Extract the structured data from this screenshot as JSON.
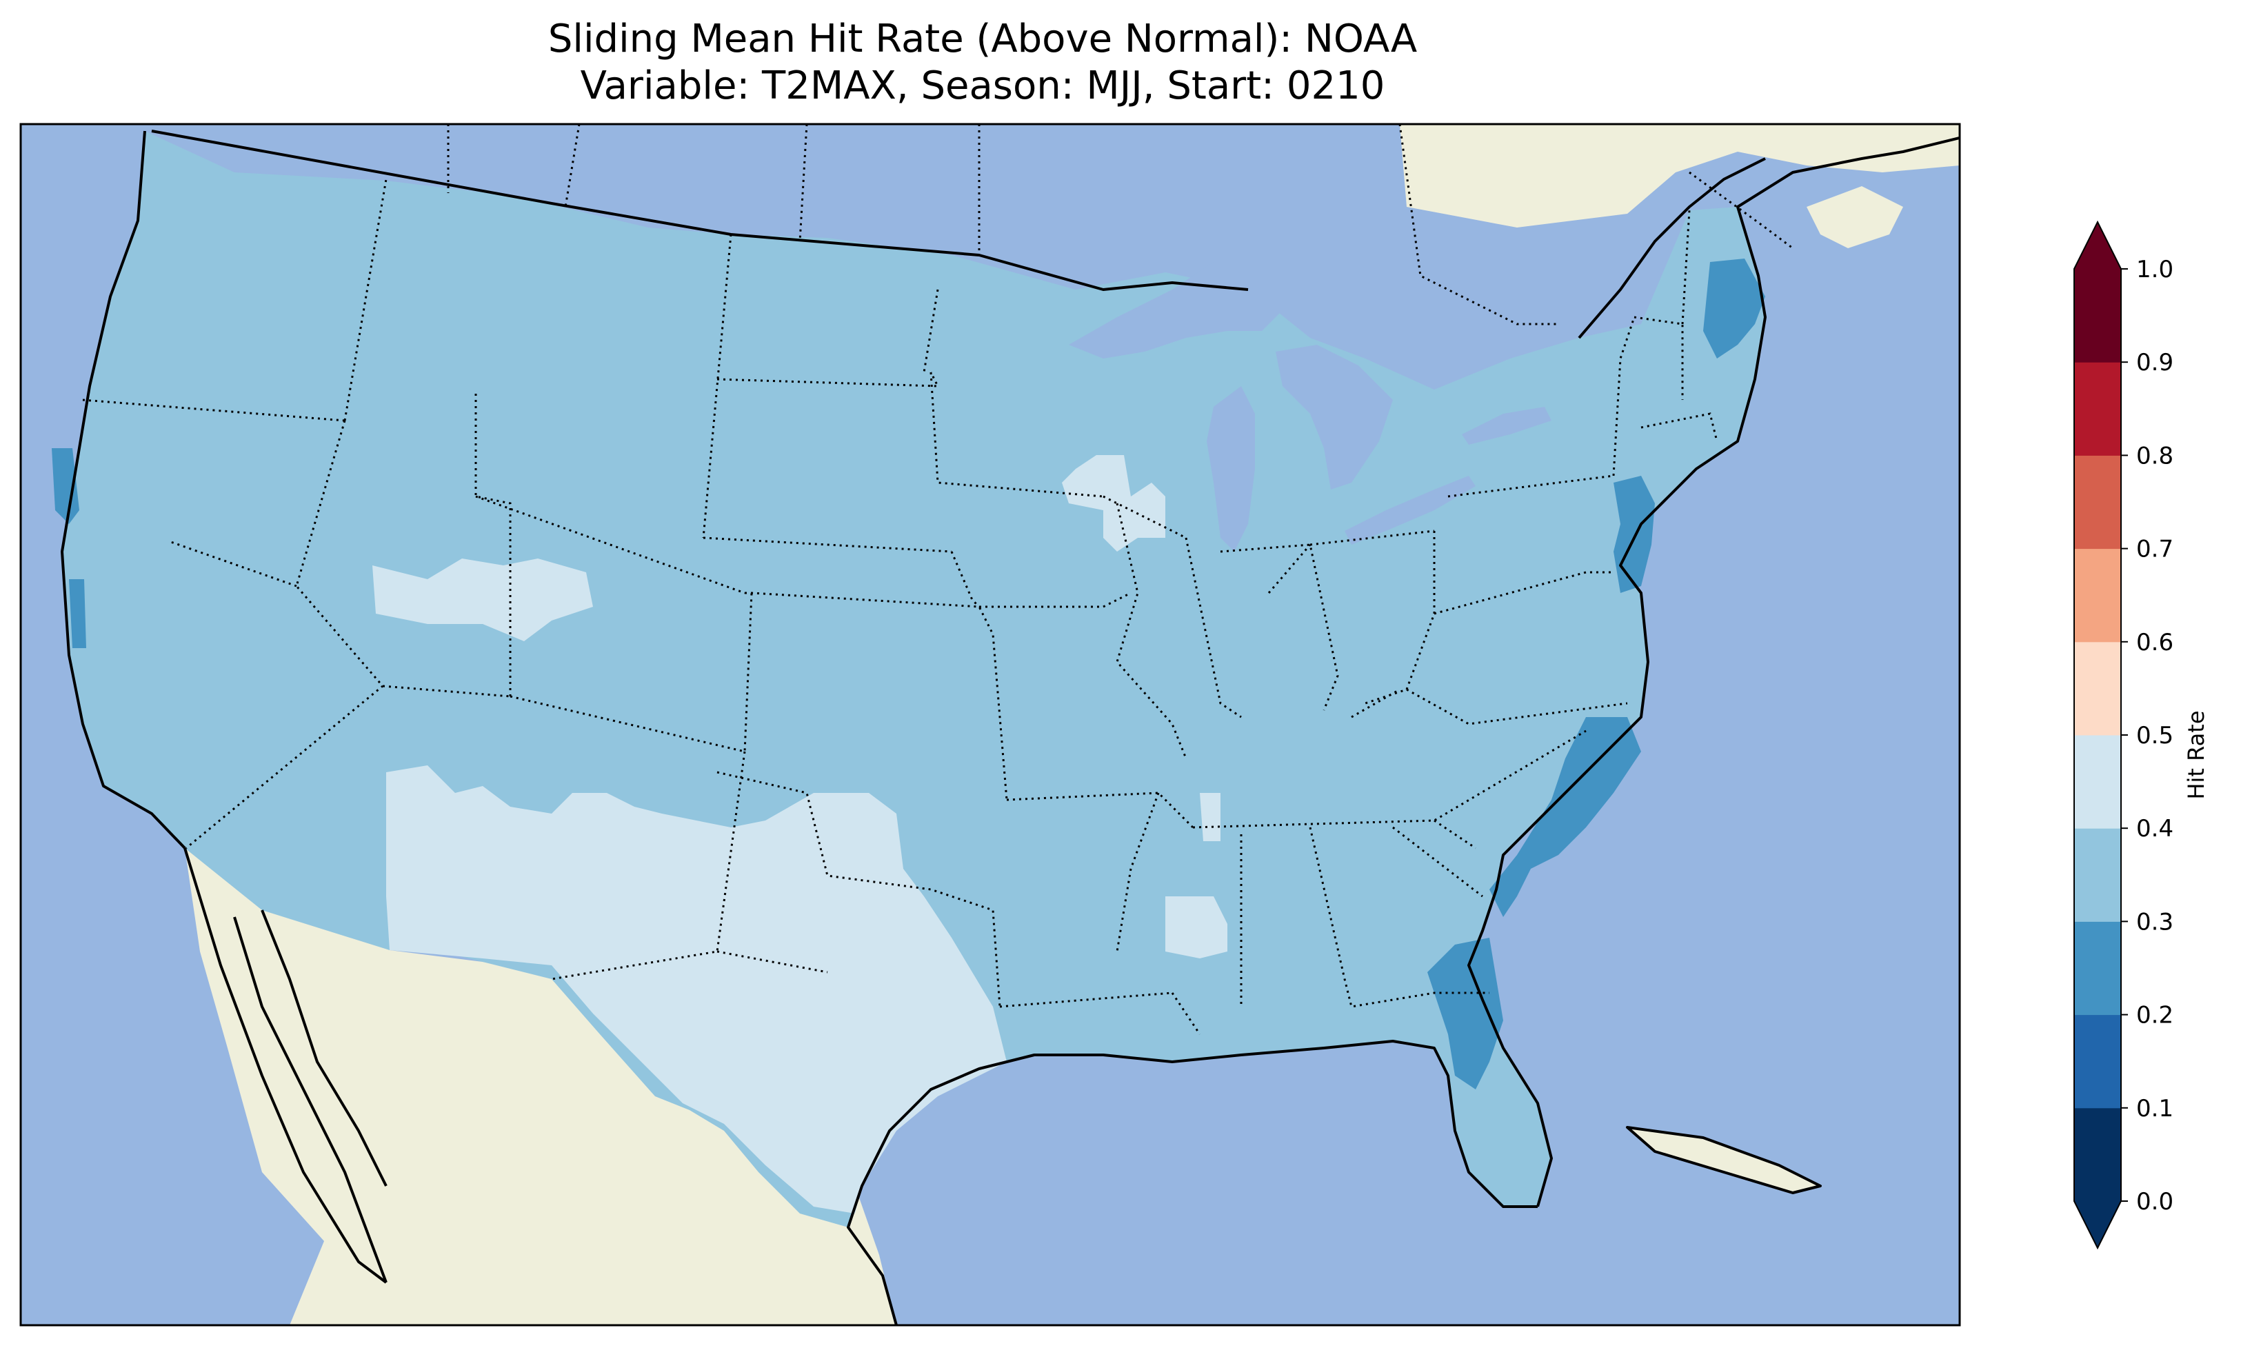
{
  "title": {
    "line1": "Sliding Mean Hit Rate (Above Normal): NOAA",
    "line2": "Variable: T2MAX, Season: MJJ, Start: 0210"
  },
  "colors": {
    "ocean": "#97b6e1",
    "land": "#efefdb",
    "lake": "#97b6e1",
    "border": "#000000"
  },
  "colorbar": {
    "label": "Hit Rate",
    "ticks": [
      "0.0",
      "0.1",
      "0.2",
      "0.3",
      "0.4",
      "0.5",
      "0.6",
      "0.7",
      "0.8",
      "0.9",
      "1.0"
    ],
    "bins": [
      {
        "range": [
          0.0,
          0.1
        ],
        "color": "#053061"
      },
      {
        "range": [
          0.1,
          0.2
        ],
        "color": "#2166ac"
      },
      {
        "range": [
          0.2,
          0.3
        ],
        "color": "#4393c3"
      },
      {
        "range": [
          0.3,
          0.4
        ],
        "color": "#92c5de"
      },
      {
        "range": [
          0.4,
          0.5
        ],
        "color": "#d1e5f0"
      },
      {
        "range": [
          0.5,
          0.6
        ],
        "color": "#fddbc7"
      },
      {
        "range": [
          0.6,
          0.7
        ],
        "color": "#f4a582"
      },
      {
        "range": [
          0.7,
          0.8
        ],
        "color": "#d6604d"
      },
      {
        "range": [
          0.8,
          0.9
        ],
        "color": "#b2182b"
      },
      {
        "range": [
          0.9,
          1.0
        ],
        "color": "#67001f"
      }
    ],
    "extend_low_color": "#053061",
    "extend_high_color": "#67001f"
  },
  "field": {
    "dominant_bin": "0.3-0.4",
    "regions": [
      {
        "name": "Northern Nevada / Utah",
        "bin": "0.4-0.5"
      },
      {
        "name": "Southwest / New Mexico / Texas",
        "bin": "0.4-0.5"
      },
      {
        "name": "Wisconsin",
        "bin": "0.4-0.5"
      },
      {
        "name": "Mississippi",
        "bin": "0.4-0.5"
      },
      {
        "name": "Maine coast",
        "bin": "0.2-0.3"
      },
      {
        "name": "New Jersey",
        "bin": "0.2-0.3"
      },
      {
        "name": "Carolinas coast",
        "bin": "0.2-0.3"
      },
      {
        "name": "Georgia / Florida coast",
        "bin": "0.2-0.3"
      },
      {
        "name": "Northern California coast",
        "bin": "0.2-0.3"
      }
    ]
  }
}
